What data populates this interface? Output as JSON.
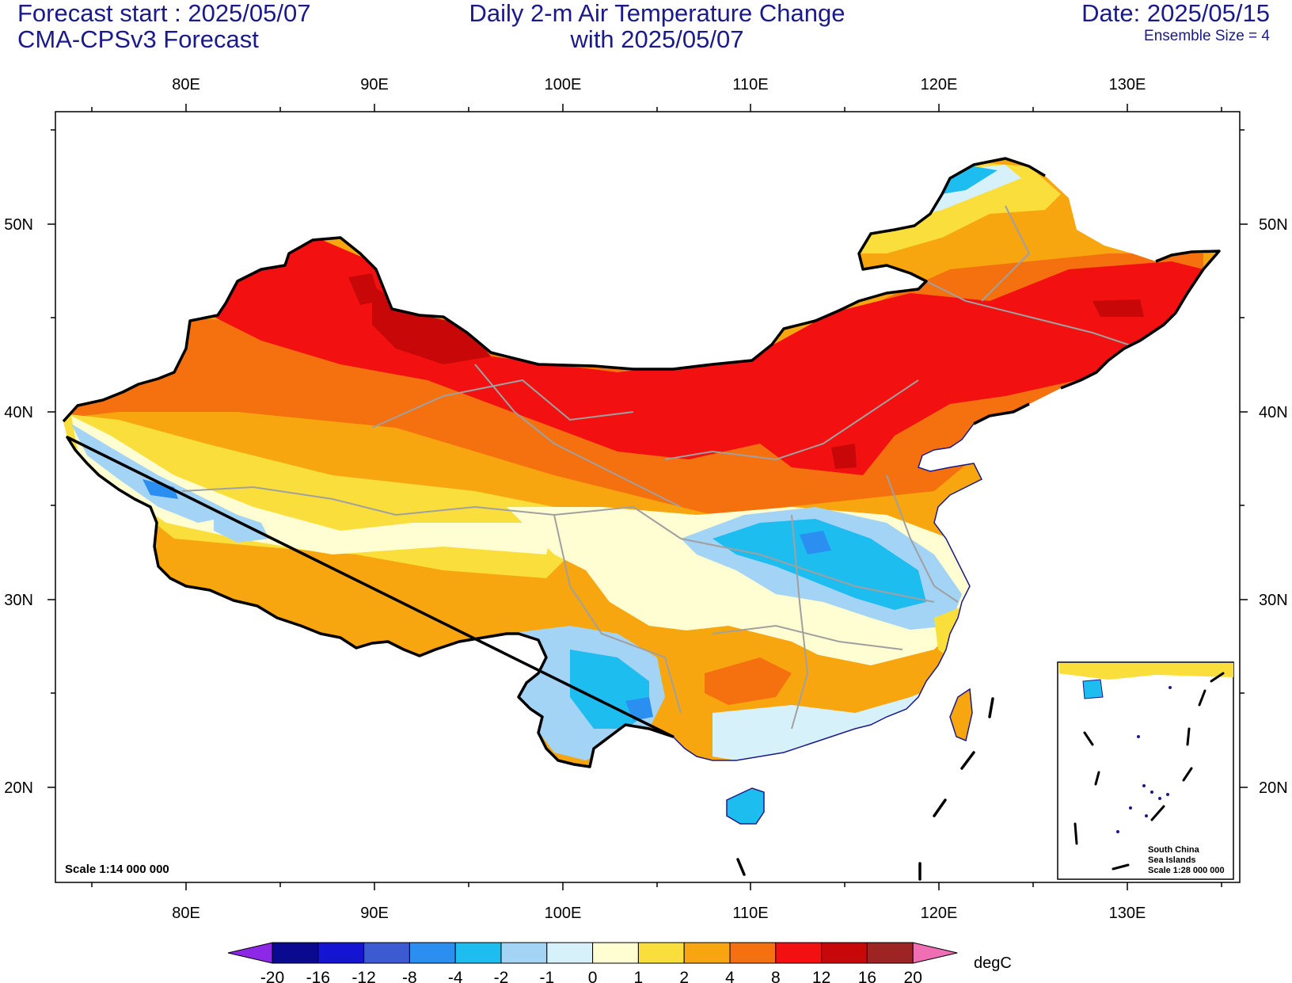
{
  "header": {
    "forecast_start": "Forecast start : 2025/05/07",
    "model": "CMA-CPSv3 Forecast",
    "title_line1": "Daily 2-m Air Temperature Change",
    "title_line2": "with 2025/05/07",
    "date": "Date: 2025/05/15",
    "ensemble": "Ensemble Size = 4"
  },
  "map": {
    "lon_ticks": [
      "80E",
      "90E",
      "100E",
      "110E",
      "120E",
      "130E"
    ],
    "lat_ticks": [
      "50N",
      "40N",
      "30N",
      "20N"
    ],
    "scale_label": "Scale 1:14 000 000",
    "inset": {
      "line1": "South China",
      "line2": "Sea Islands",
      "line3": "Scale 1:28 000 000"
    }
  },
  "colorbar": {
    "unit": "degC",
    "labels": [
      "-20",
      "-16",
      "-12",
      "-8",
      "-4",
      "-2",
      "-1",
      "0",
      "1",
      "2",
      "4",
      "8",
      "12",
      "16",
      "20"
    ],
    "colors": [
      "#0a0a90",
      "#1414d2",
      "#3c5ad2",
      "#2a8ff0",
      "#1ebdf0",
      "#a3d3f5",
      "#d7f1fb",
      "#fffdd2",
      "#fadf3c",
      "#f7a60f",
      "#f5700f",
      "#f21010",
      "#c80808",
      "#9e2424"
    ],
    "low_extend_color": "#8c28e6",
    "high_extend_color": "#f06eb4"
  }
}
